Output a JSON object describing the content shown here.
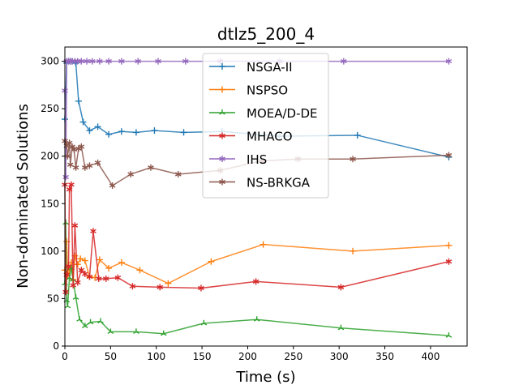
{
  "chart_data": {
    "type": "line",
    "title": "dtlz5_200_4",
    "xlabel": "Time (s)",
    "ylabel": "Non-dominated Solutions",
    "xlim": [
      0,
      440
    ],
    "ylim": [
      0,
      315
    ],
    "xticks": [
      0,
      50,
      100,
      150,
      200,
      250,
      300,
      350,
      400
    ],
    "yticks": [
      0,
      50,
      100,
      150,
      200,
      250,
      300
    ],
    "grid": false,
    "legend_position": "top-center",
    "series": [
      {
        "name": "NSGA-II",
        "color": "#1f77b4",
        "marker": "star4",
        "points": [
          [
            0,
            239
          ],
          [
            2,
            298
          ],
          [
            4,
            300
          ],
          [
            6,
            300
          ],
          [
            8,
            300
          ],
          [
            12,
            298
          ],
          [
            15,
            258
          ],
          [
            20,
            236
          ],
          [
            27,
            227
          ],
          [
            36,
            231
          ],
          [
            48,
            223
          ],
          [
            62,
            226
          ],
          [
            78,
            225
          ],
          [
            98,
            227
          ],
          [
            130,
            225
          ],
          [
            172,
            226
          ],
          [
            235,
            221
          ],
          [
            320,
            222
          ],
          [
            420,
            199
          ]
        ]
      },
      {
        "name": "NSPSO",
        "color": "#ff7f0e",
        "marker": "plus4",
        "points": [
          [
            0,
            80
          ],
          [
            2,
            110
          ],
          [
            3,
            75
          ],
          [
            5,
            80
          ],
          [
            7,
            88
          ],
          [
            9,
            70
          ],
          [
            11,
            95
          ],
          [
            14,
            86
          ],
          [
            17,
            92
          ],
          [
            22,
            90
          ],
          [
            27,
            73
          ],
          [
            33,
            72
          ],
          [
            38,
            91
          ],
          [
            48,
            82
          ],
          [
            62,
            88
          ],
          [
            82,
            80
          ],
          [
            113,
            66
          ],
          [
            160,
            89
          ],
          [
            217,
            107
          ],
          [
            315,
            100
          ],
          [
            420,
            106
          ]
        ]
      },
      {
        "name": "MOEA/D-DE",
        "color": "#2ca02c",
        "marker": "star3",
        "points": [
          [
            0,
            66
          ],
          [
            1,
            130
          ],
          [
            2,
            48
          ],
          [
            3,
            42
          ],
          [
            5,
            72
          ],
          [
            7,
            82
          ],
          [
            9,
            70
          ],
          [
            12,
            51
          ],
          [
            16,
            28
          ],
          [
            22,
            21
          ],
          [
            28,
            25
          ],
          [
            39,
            26
          ],
          [
            50,
            15
          ],
          [
            78,
            15
          ],
          [
            108,
            13
          ],
          [
            152,
            24
          ],
          [
            210,
            28
          ],
          [
            302,
            19
          ],
          [
            420,
            11
          ]
        ]
      },
      {
        "name": "MHACO",
        "color": "#d62728",
        "marker": "star6",
        "points": [
          [
            0,
            170
          ],
          [
            1,
            57
          ],
          [
            2,
            75
          ],
          [
            4,
            84
          ],
          [
            5,
            165
          ],
          [
            7,
            170
          ],
          [
            9,
            64
          ],
          [
            11,
            127
          ],
          [
            14,
            67
          ],
          [
            18,
            80
          ],
          [
            22,
            76
          ],
          [
            27,
            73
          ],
          [
            31,
            121
          ],
          [
            37,
            71
          ],
          [
            45,
            71
          ],
          [
            58,
            72
          ],
          [
            74,
            63
          ],
          [
            104,
            62
          ],
          [
            149,
            61
          ],
          [
            209,
            68
          ],
          [
            302,
            62
          ],
          [
            420,
            89
          ]
        ]
      },
      {
        "name": "IHS",
        "color": "#9467bd",
        "marker": "star6",
        "points": [
          [
            0,
            269
          ],
          [
            1,
            178
          ],
          [
            2,
            300
          ],
          [
            4,
            300
          ],
          [
            6,
            300
          ],
          [
            8,
            300
          ],
          [
            11,
            300
          ],
          [
            14,
            300
          ],
          [
            18,
            300
          ],
          [
            24,
            300
          ],
          [
            30,
            300
          ],
          [
            38,
            300
          ],
          [
            48,
            300
          ],
          [
            62,
            300
          ],
          [
            80,
            300
          ],
          [
            102,
            300
          ],
          [
            132,
            300
          ],
          [
            170,
            300
          ],
          [
            235,
            300
          ],
          [
            305,
            300
          ],
          [
            420,
            300
          ]
        ]
      },
      {
        "name": "NS-BRKGA",
        "color": "#8c564b",
        "marker": "star6",
        "points": [
          [
            0,
            216
          ],
          [
            2,
            211
          ],
          [
            3,
            200
          ],
          [
            5,
            214
          ],
          [
            6,
            191
          ],
          [
            8,
            210
          ],
          [
            10,
            207
          ],
          [
            12,
            188
          ],
          [
            15,
            208
          ],
          [
            18,
            210
          ],
          [
            22,
            188
          ],
          [
            27,
            190
          ],
          [
            36,
            193
          ],
          [
            52,
            169
          ],
          [
            72,
            181
          ],
          [
            94,
            188
          ],
          [
            124,
            181
          ],
          [
            170,
            185
          ],
          [
            215,
            195
          ],
          [
            255,
            197
          ],
          [
            315,
            197
          ],
          [
            420,
            201
          ]
        ]
      }
    ]
  }
}
